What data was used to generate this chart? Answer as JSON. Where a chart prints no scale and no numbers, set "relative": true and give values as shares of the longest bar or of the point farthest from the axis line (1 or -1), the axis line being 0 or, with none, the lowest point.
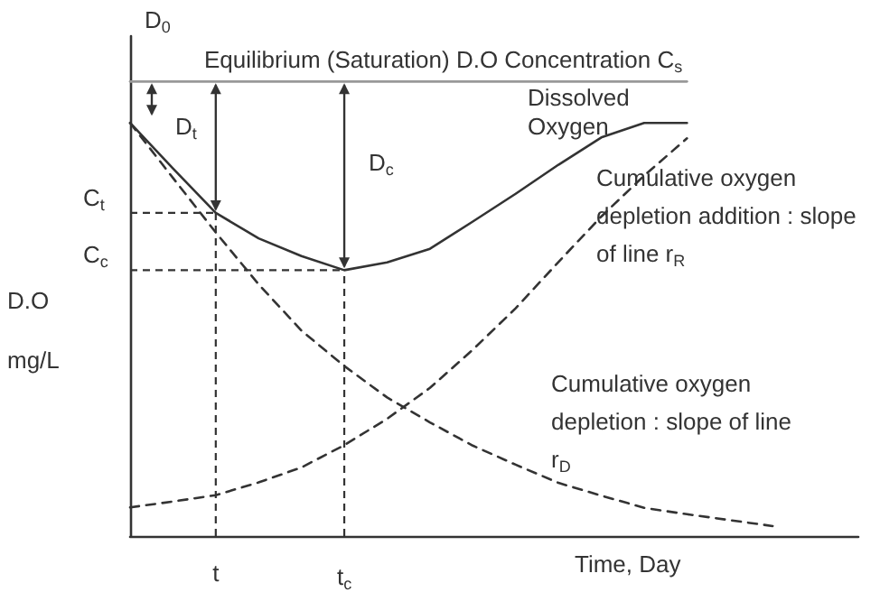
{
  "chart_data": {
    "type": "line",
    "relative": true,
    "xlabel": "Time, Day",
    "ylabel": "D.O mg/L",
    "marker": "none",
    "categories": [
      null,
      null,
      "t",
      null,
      null,
      "t$_{c}$",
      null,
      null,
      null,
      null,
      null,
      null,
      null,
      null,
      null,
      null,
      null,
      null
    ],
    "series": [
      {
        "color": "#999999",
        "line_style": "solid",
        "values": [
          1,
          1,
          1,
          1,
          1,
          1,
          1,
          1,
          1,
          1,
          1,
          1,
          1,
          1,
          null,
          null,
          null,
          null
        ]
      },
      {
        "color": "#333333",
        "line_style": "solid",
        "values": [
          0.909,
          0.809,
          0.711,
          0.655,
          0.616,
          0.585,
          0.602,
          0.632,
          0.692,
          0.753,
          0.817,
          0.877,
          0.909,
          0.909,
          null,
          null,
          null,
          null
        ]
      },
      {
        "color": "#333333",
        "line_style": "dashed",
        "values": [
          0.909,
          0.788,
          0.668,
          0.554,
          0.452,
          0.374,
          0.305,
          0.25,
          0.199,
          0.157,
          0.117,
          0.089,
          0.062,
          0.048,
          0.035,
          0.022,
          null,
          null
        ]
      },
      {
        "color": "#333333",
        "line_style": "dashed",
        "values": [
          0.063,
          0.076,
          0.09,
          0.118,
          0.151,
          0.2,
          0.258,
          0.326,
          0.41,
          0.501,
          0.603,
          0.703,
          0.793,
          0.875,
          null,
          null,
          null,
          null
        ]
      }
    ],
    "ref_lines": [
      {
        "axis": "y",
        "value": 0.711,
        "label": "C$_{t}$",
        "color": "#333333",
        "line_style": "dashed"
      },
      {
        "axis": "y",
        "value": 0.585,
        "label": "C$_{c}$",
        "color": "#333333",
        "line_style": "dashed"
      }
    ],
    "annotations": [
      "Equilibrium (Saturation) D.O Concentration C$_{s}$",
      "D$_{0}$",
      "D$_{t}$",
      "D$_{c}$",
      "Dissolved Oxygen",
      "Cumulative oxygen depletion addition : slope of line r$_{R}$",
      "Cumulative oxygen depletion : slope of line r$_{D}$"
    ]
  }
}
